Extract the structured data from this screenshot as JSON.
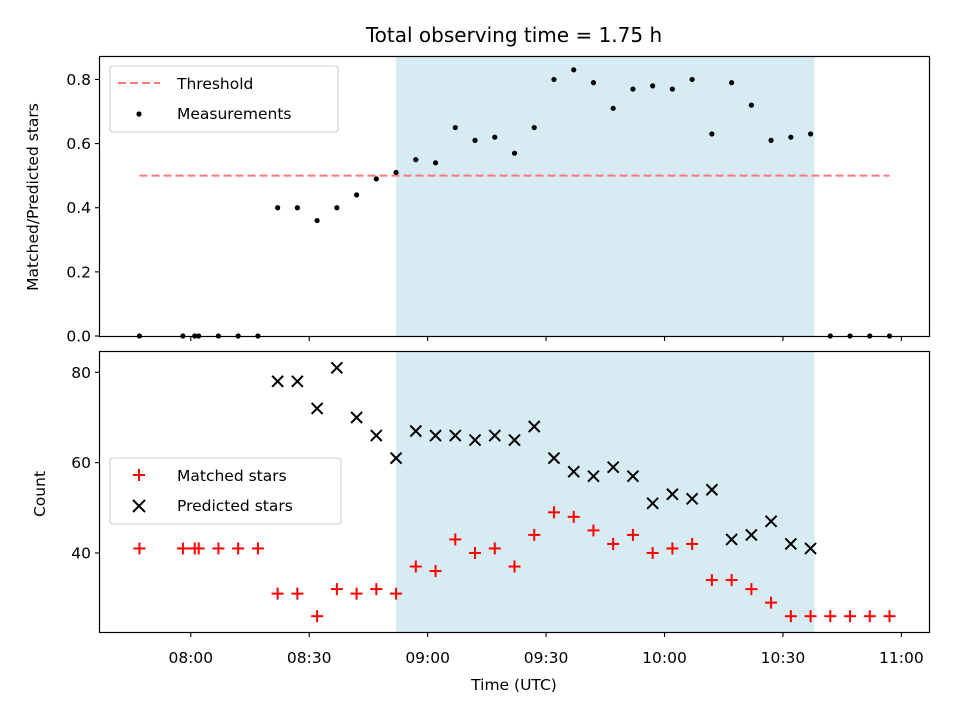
{
  "chart_data": [
    {
      "type": "scatter",
      "title": "Total observing time = 1.75 h",
      "xlabel": "",
      "ylabel": "Matched/Predicted stars",
      "xlim": [
        "07:37",
        "11:07"
      ],
      "ylim": [
        0,
        0.87
      ],
      "yticks": [
        "0.0",
        "0.2",
        "0.4",
        "0.6",
        "0.8"
      ],
      "shaded_interval": [
        "08:52",
        "10:38"
      ],
      "threshold": {
        "name": "Threshold",
        "value": 0.5,
        "x_range": [
          "07:47",
          "10:57"
        ],
        "color": "#ff7777"
      },
      "legend_position": "upper left",
      "series": [
        {
          "name": "Measurements",
          "marker": "dot",
          "color": "#000000",
          "x": [
            "07:47",
            "07:58",
            "08:01",
            "08:02",
            "08:07",
            "08:12",
            "08:17",
            "08:22",
            "08:27",
            "08:32",
            "08:37",
            "08:42",
            "08:47",
            "08:52",
            "08:57",
            "09:02",
            "09:07",
            "09:12",
            "09:17",
            "09:22",
            "09:27",
            "09:32",
            "09:37",
            "09:42",
            "09:47",
            "09:52",
            "09:57",
            "10:02",
            "10:07",
            "10:12",
            "10:17",
            "10:22",
            "10:27",
            "10:32",
            "10:37",
            "10:42",
            "10:47",
            "10:52",
            "10:57"
          ],
          "y": [
            0,
            0,
            0,
            0,
            0,
            0,
            0,
            0.4,
            0.4,
            0.36,
            0.4,
            0.44,
            0.49,
            0.51,
            0.55,
            0.54,
            0.65,
            0.61,
            0.62,
            0.57,
            0.65,
            0.8,
            0.83,
            0.79,
            0.71,
            0.77,
            0.78,
            0.77,
            0.8,
            0.63,
            0.79,
            0.72,
            0.61,
            0.62,
            0.63,
            0,
            0,
            0,
            0
          ]
        }
      ]
    },
    {
      "type": "scatter",
      "title": "",
      "xlabel": "Time (UTC)",
      "ylabel": "Count",
      "xlim": [
        "07:37",
        "11:07"
      ],
      "ylim": [
        22.5,
        84.5
      ],
      "xticks": [
        "08:00",
        "08:30",
        "09:00",
        "09:30",
        "10:00",
        "10:30",
        "11:00"
      ],
      "yticks": [
        "40",
        "60",
        "80"
      ],
      "shaded_interval": [
        "08:52",
        "10:38"
      ],
      "legend_position": "center left",
      "series": [
        {
          "name": "Matched stars",
          "marker": "plus",
          "color": "#ff0000",
          "x": [
            "07:47",
            "07:58",
            "08:01",
            "08:02",
            "08:07",
            "08:12",
            "08:17",
            "08:22",
            "08:27",
            "08:32",
            "08:37",
            "08:42",
            "08:47",
            "08:52",
            "08:57",
            "09:02",
            "09:07",
            "09:12",
            "09:17",
            "09:22",
            "09:27",
            "09:32",
            "09:37",
            "09:42",
            "09:47",
            "09:52",
            "09:57",
            "10:02",
            "10:07",
            "10:12",
            "10:17",
            "10:22",
            "10:27",
            "10:32",
            "10:37",
            "10:42",
            "10:47",
            "10:52",
            "10:57"
          ],
          "y": [
            41,
            41,
            41,
            41,
            41,
            41,
            41,
            31,
            31,
            26,
            32,
            31,
            32,
            31,
            37,
            36,
            43,
            40,
            41,
            37,
            44,
            49,
            48,
            45,
            42,
            44,
            40,
            41,
            42,
            34,
            34,
            32,
            29,
            26,
            26,
            26,
            26,
            26,
            26
          ]
        },
        {
          "name": "Predicted stars",
          "marker": "x",
          "color": "#000000",
          "x": [
            "08:22",
            "08:27",
            "08:32",
            "08:37",
            "08:42",
            "08:47",
            "08:52",
            "08:57",
            "09:02",
            "09:07",
            "09:12",
            "09:17",
            "09:22",
            "09:27",
            "09:32",
            "09:37",
            "09:42",
            "09:47",
            "09:52",
            "09:57",
            "10:02",
            "10:07",
            "10:12",
            "10:17",
            "10:22",
            "10:27",
            "10:32",
            "10:37"
          ],
          "y": [
            78,
            78,
            72,
            81,
            70,
            66,
            61,
            67,
            66,
            66,
            65,
            66,
            65,
            68,
            61,
            58,
            57,
            59,
            57,
            51,
            53,
            52,
            54,
            43,
            44,
            47,
            42,
            41
          ]
        }
      ]
    }
  ]
}
